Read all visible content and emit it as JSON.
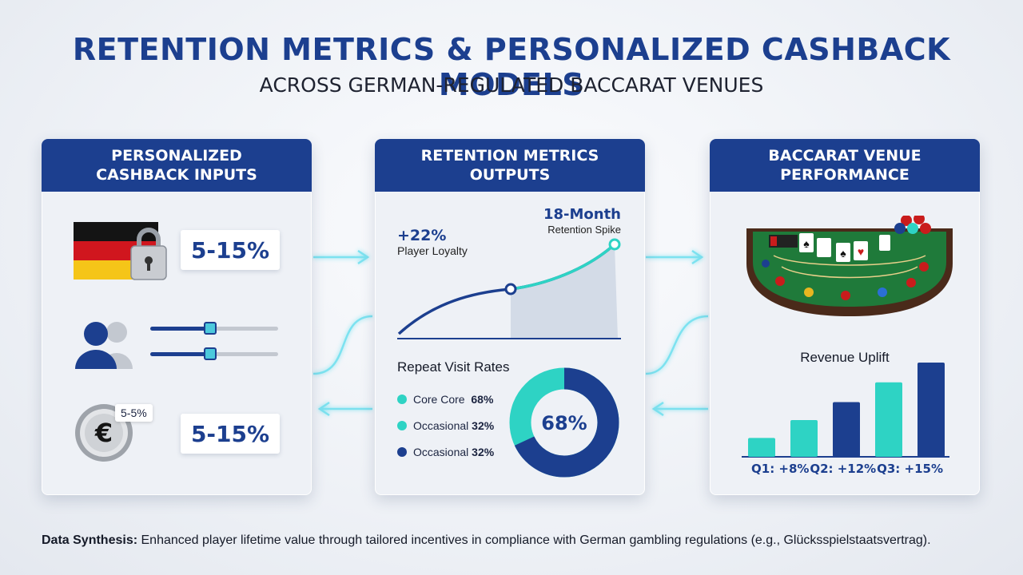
{
  "title": "RETENTION METRICS & PERSONALIZED CASHBACK MODELS",
  "subtitle": "ACROSS GERMAN-REGULATED BACCARAT VENUES",
  "cards": {
    "inputs": {
      "title_line1": "PERSONALIZED",
      "title_line2": "CASHBACK INPUTS",
      "rows": [
        {
          "icon": "germany-flag-lock-icon",
          "value": "5-15%"
        },
        {
          "icon": "users-sliders-icon"
        },
        {
          "icon": "euro-coin-icon",
          "badge": "5-5%",
          "value": "5-15%"
        }
      ]
    },
    "outputs": {
      "title_line1": "RETENTION METRICS",
      "title_line2": "OUTPUTS",
      "loyalty_value": "+22%",
      "loyalty_label": "Player Loyalty",
      "spike_title": "18-Month",
      "spike_label": "Retention Spike",
      "repeat_title": "Repeat Visit Rates",
      "legend": [
        {
          "label": "Core Core",
          "value": "68%",
          "color": "#2ed3c4"
        },
        {
          "label": "Occasional",
          "value": "32%",
          "color": "#2ed3c4"
        },
        {
          "label": "Occasional",
          "value": "32%",
          "color": "#1c3f8f"
        }
      ],
      "donut_center": "68%",
      "donut_share": 0.68
    },
    "venue": {
      "title_line1": "BACCARAT VENUE",
      "title_line2": "PERFORMANCE",
      "revenue_title": "Revenue Uplift",
      "bars_labels": [
        "Q1: +8%",
        "Q2: +12%",
        "Q3: +15%"
      ],
      "bar_heights_rel": [
        0.2,
        0.39,
        0.58,
        0.79,
        1.0
      ],
      "bar_colors": [
        "#2ed3c4",
        "#2ed3c4",
        "#1c3f8f",
        "#2ed3c4",
        "#1c3f8f"
      ]
    }
  },
  "footer": {
    "label": "Data Synthesis:",
    "text": " Enhanced player lifetime value through tailored incentives in compliance with German gambling regulations (e.g., Glücksspielstaatsvertrag)."
  },
  "colors": {
    "navy": "#1c3f8f",
    "teal": "#2ed3c4",
    "glow": "#7fe6f2"
  }
}
